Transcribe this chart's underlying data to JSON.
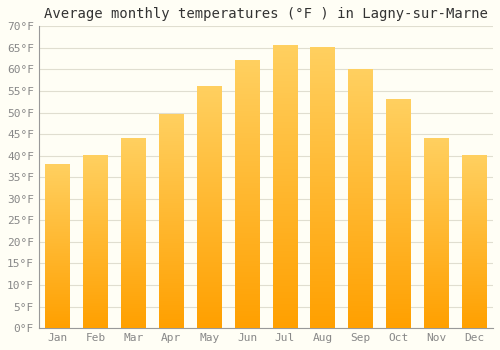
{
  "title": "Average monthly temperatures (°F ) in Lagny-sur-Marne",
  "months": [
    "Jan",
    "Feb",
    "Mar",
    "Apr",
    "May",
    "Jun",
    "Jul",
    "Aug",
    "Sep",
    "Oct",
    "Nov",
    "Dec"
  ],
  "values": [
    38,
    40,
    44,
    49.5,
    56,
    62,
    65.5,
    65,
    60,
    53,
    44,
    40
  ],
  "bar_color_top": "#FFD060",
  "bar_color_bottom": "#FFA000",
  "ylim": [
    0,
    70
  ],
  "yticks": [
    0,
    5,
    10,
    15,
    20,
    25,
    30,
    35,
    40,
    45,
    50,
    55,
    60,
    65,
    70
  ],
  "background_color": "#FFFEF5",
  "grid_color": "#E0DED0",
  "title_fontsize": 10,
  "tick_fontsize": 8,
  "font_family": "monospace"
}
